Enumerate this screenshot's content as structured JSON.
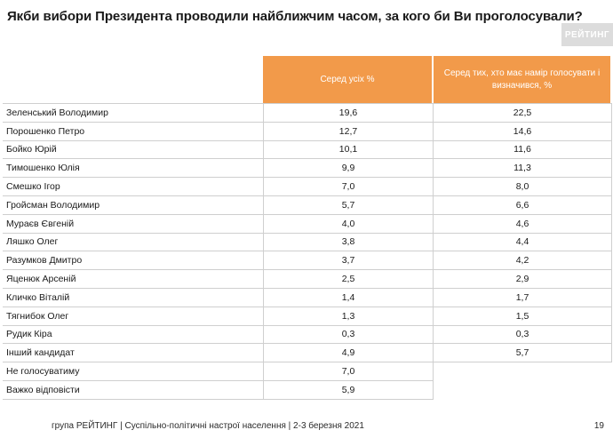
{
  "title": "Якби вибори Президента проводили найближчим часом, за кого би Ви проголосували?",
  "logo_text": "РЕЙТИНГ",
  "footer": "група РЕЙТИНГ | Суспільно-політичні настрої населення  | 2-3 березня 2021",
  "page_number": "19",
  "colors": {
    "header_bg": "#f29a4a",
    "header_text": "#ffffff",
    "grid": "#cfcfcf"
  },
  "chart_data": {
    "type": "table",
    "columns": [
      "Серед усіх %",
      "Серед тих, хто має намір голосувати і визначився, %"
    ],
    "rows": [
      {
        "name": "Зеленський Володимир",
        "all": "19,6",
        "decided": "22,5"
      },
      {
        "name": "Порошенко Петро",
        "all": "12,7",
        "decided": "14,6"
      },
      {
        "name": "Бойко Юрій",
        "all": "10,1",
        "decided": "11,6"
      },
      {
        "name": "Тимошенко Юлія",
        "all": "9,9",
        "decided": "11,3"
      },
      {
        "name": "Смешко Ігор",
        "all": "7,0",
        "decided": "8,0"
      },
      {
        "name": "Гройсман Володимир",
        "all": "5,7",
        "decided": "6,6"
      },
      {
        "name": "Мураєв Євгеній",
        "all": "4,0",
        "decided": "4,6"
      },
      {
        "name": "Ляшко Олег",
        "all": "3,8",
        "decided": "4,4"
      },
      {
        "name": "Разумков Дмитро",
        "all": "3,7",
        "decided": "4,2"
      },
      {
        "name": "Яценюк  Арсеній",
        "all": "2,5",
        "decided": "2,9"
      },
      {
        "name": "Кличко Віталій",
        "all": "1,4",
        "decided": "1,7"
      },
      {
        "name": "Тягнибок Олег",
        "all": "1,3",
        "decided": "1,5"
      },
      {
        "name": "Рудик Кіра",
        "all": "0,3",
        "decided": "0,3"
      },
      {
        "name": "Інший кандидат",
        "all": "4,9",
        "decided": "5,7"
      },
      {
        "name": "Не голосуватиму",
        "all": "7,0",
        "decided": ""
      },
      {
        "name": "Важко відповісти",
        "all": "5,9",
        "decided": ""
      }
    ]
  }
}
